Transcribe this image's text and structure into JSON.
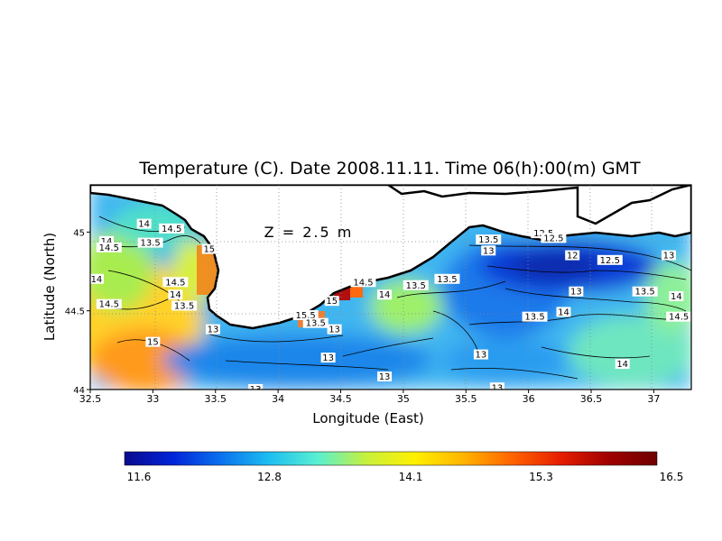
{
  "title": "Temperature (C). Date 2008.11.11. Time 06(h):00(m) GMT",
  "depth_label": "Z = 2.5 m",
  "x_axis": {
    "label": "Longitude (East)",
    "range": [
      32.5,
      37.3
    ],
    "ticks": [
      "32.5",
      "33",
      "33.5",
      "34",
      "34.5",
      "35",
      "35.5",
      "36",
      "36.5",
      "37"
    ]
  },
  "y_axis": {
    "label": "Latitude (North)",
    "range": [
      44.0,
      45.3
    ],
    "ticks": [
      "44",
      "44.5",
      "45"
    ]
  },
  "colorbar": {
    "min": 11.6,
    "max": 16.5,
    "labels": [
      "11.6",
      "12.8",
      "14.1",
      "15.3",
      "16.5"
    ],
    "colors": [
      "#0a0a8c",
      "#0024d8",
      "#0a72ee",
      "#1ebff0",
      "#5af0d0",
      "#c8f03c",
      "#fff000",
      "#ffb400",
      "#ff6400",
      "#e61e00",
      "#a00000",
      "#6e0000"
    ]
  },
  "contour_labels": [
    {
      "text": "14",
      "lon": 32.93,
      "lat": 45.05
    },
    {
      "text": "14.5",
      "lon": 33.15,
      "lat": 45.02
    },
    {
      "text": "14",
      "lon": 32.63,
      "lat": 44.94
    },
    {
      "text": "13.5",
      "lon": 32.98,
      "lat": 44.93
    },
    {
      "text": "14.5",
      "lon": 32.65,
      "lat": 44.9
    },
    {
      "text": "15",
      "lon": 33.45,
      "lat": 44.89
    },
    {
      "text": "14",
      "lon": 32.55,
      "lat": 44.7
    },
    {
      "text": "14.5",
      "lon": 33.18,
      "lat": 44.68
    },
    {
      "text": "14",
      "lon": 33.18,
      "lat": 44.6
    },
    {
      "text": "13.5",
      "lon": 33.25,
      "lat": 44.53
    },
    {
      "text": "14.5",
      "lon": 32.65,
      "lat": 44.54
    },
    {
      "text": "15",
      "lon": 33.0,
      "lat": 44.3
    },
    {
      "text": "13",
      "lon": 33.48,
      "lat": 44.38
    },
    {
      "text": "15.5",
      "lon": 34.22,
      "lat": 44.47
    },
    {
      "text": "15",
      "lon": 34.43,
      "lat": 44.56
    },
    {
      "text": "13.5",
      "lon": 34.3,
      "lat": 44.42
    },
    {
      "text": "13",
      "lon": 34.45,
      "lat": 44.38
    },
    {
      "text": "13",
      "lon": 34.4,
      "lat": 44.2
    },
    {
      "text": "14.5",
      "lon": 34.68,
      "lat": 44.68
    },
    {
      "text": "14",
      "lon": 34.85,
      "lat": 44.6
    },
    {
      "text": "13.5",
      "lon": 35.1,
      "lat": 44.66
    },
    {
      "text": "13.5",
      "lon": 35.35,
      "lat": 44.7
    },
    {
      "text": "13",
      "lon": 34.85,
      "lat": 44.08
    },
    {
      "text": "13.5",
      "lon": 35.68,
      "lat": 44.95
    },
    {
      "text": "13",
      "lon": 35.68,
      "lat": 44.88
    },
    {
      "text": "12.5",
      "lon": 36.12,
      "lat": 44.99
    },
    {
      "text": "12.5",
      "lon": 36.2,
      "lat": 44.96
    },
    {
      "text": "12",
      "lon": 36.35,
      "lat": 44.85
    },
    {
      "text": "12.5",
      "lon": 36.65,
      "lat": 44.82
    },
    {
      "text": "13",
      "lon": 37.12,
      "lat": 44.85
    },
    {
      "text": "13",
      "lon": 36.38,
      "lat": 44.62
    },
    {
      "text": "13.5",
      "lon": 36.93,
      "lat": 44.62
    },
    {
      "text": "14",
      "lon": 36.28,
      "lat": 44.49
    },
    {
      "text": "13.5",
      "lon": 36.05,
      "lat": 44.46
    },
    {
      "text": "14",
      "lon": 37.18,
      "lat": 44.59
    },
    {
      "text": "14.5",
      "lon": 37.2,
      "lat": 44.46
    },
    {
      "text": "13",
      "lon": 35.62,
      "lat": 44.22
    },
    {
      "text": "14",
      "lon": 36.75,
      "lat": 44.16
    },
    {
      "text": "13",
      "lon": 35.75,
      "lat": 44.01
    },
    {
      "text": "13",
      "lon": 33.82,
      "lat": 44.0
    }
  ]
}
